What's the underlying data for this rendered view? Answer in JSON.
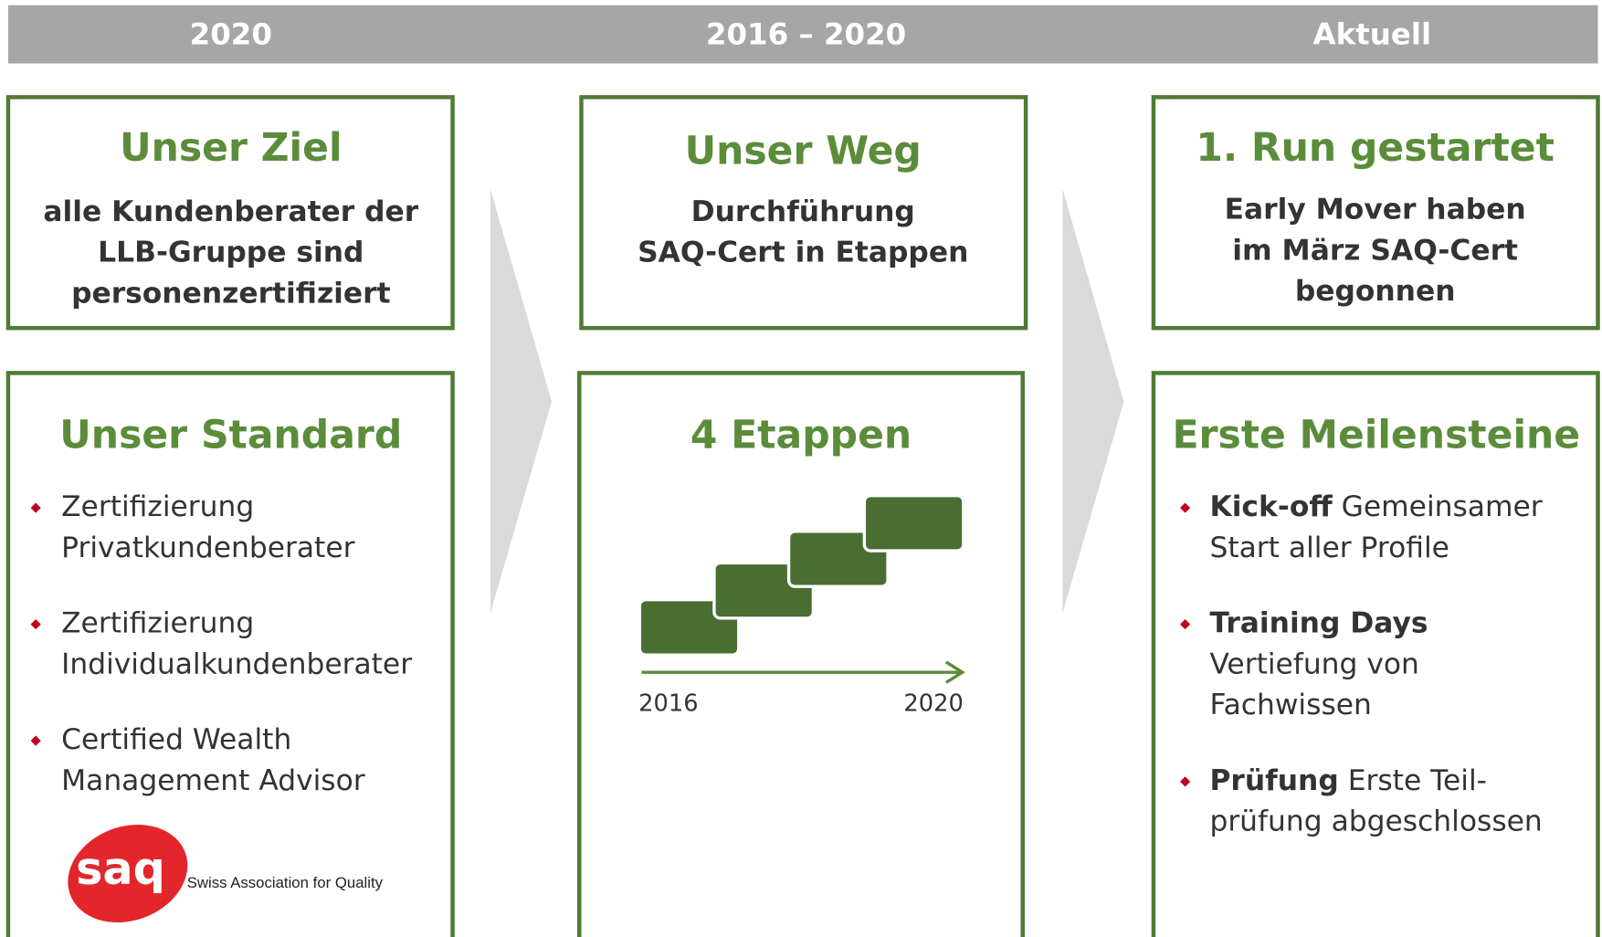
{
  "header": [
    "2020",
    "2016 – 2020",
    "Aktuell"
  ],
  "goals": [
    {
      "title": "Unser Ziel",
      "lines": [
        "alle Kundenberater der",
        "LLB-Gruppe sind",
        "personenzertifiziert"
      ]
    },
    {
      "title": "Unser Weg",
      "lines": [
        "Durchführung",
        "SAQ-Cert in Etappen"
      ]
    },
    {
      "title": "1. Run gestartet",
      "lines": [
        "Early Mover haben",
        "im März SAQ-Cert",
        "begonnen"
      ]
    }
  ],
  "standard": {
    "title": "Unser Standard",
    "bullets": [
      [
        "Zertifizierung",
        "Privatkundenberater"
      ],
      [
        "Zertifizierung",
        "Individualkundenberater"
      ],
      [
        "Certified Wealth",
        "Management Advisor"
      ]
    ],
    "logo": {
      "mark": "saq",
      "name": "Swiss Association for Quality"
    }
  },
  "stages": {
    "title": "4 Etappen",
    "start": "2016",
    "end": "2020"
  },
  "milestones": {
    "title": "Erste Meilensteine",
    "bullets": [
      {
        "bold": "Kick-off",
        "lines": [
          " Gemeinsamer",
          "Start  aller Profile"
        ]
      },
      {
        "bold": "Training Days",
        "lines": [
          "",
          "Vertiefung von",
          "Fachwissen"
        ]
      },
      {
        "bold": "Prüfung",
        "lines": [
          " Erste Teil-",
          "prüfung abgeschlossen"
        ]
      }
    ]
  }
}
